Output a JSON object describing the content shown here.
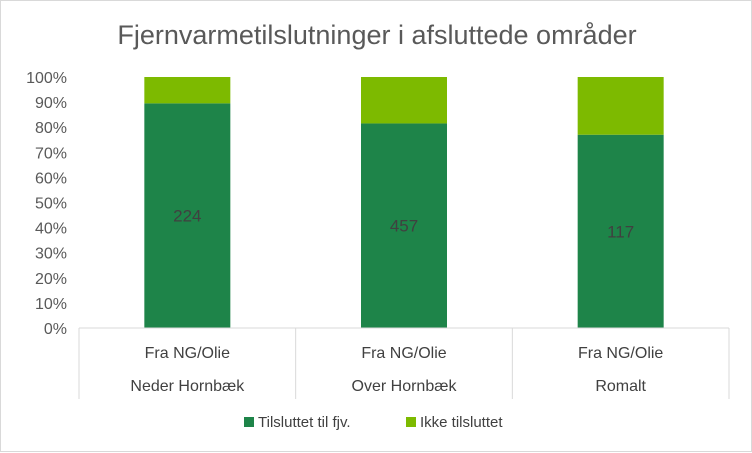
{
  "chart_data": {
    "type": "bar",
    "stacked": true,
    "percent_stacked": true,
    "title": "Fjernvarmetilslutninger i afsluttede områder",
    "categories": [
      {
        "level1": "Fra NG/Olie",
        "level2": "Neder Hornbæk"
      },
      {
        "level1": "Fra NG/Olie",
        "level2": "Over Hornbæk"
      },
      {
        "level1": "Fra NG/Olie",
        "level2": "Romalt"
      }
    ],
    "series": [
      {
        "name": "Tilsluttet til fjv.",
        "color": "#1e8449",
        "values": [
          89.5,
          81.5,
          77
        ],
        "data_labels": [
          "224",
          "457",
          "117"
        ]
      },
      {
        "name": "Ikke tilsluttet",
        "color": "#7dba00",
        "values": [
          10.5,
          18.5,
          23
        ],
        "data_labels": null
      }
    ],
    "yticks": [
      "0%",
      "10%",
      "20%",
      "30%",
      "40%",
      "50%",
      "60%",
      "70%",
      "80%",
      "90%",
      "100%"
    ],
    "ylim": [
      0,
      100
    ],
    "legend_position": "bottom",
    "grid": false
  }
}
